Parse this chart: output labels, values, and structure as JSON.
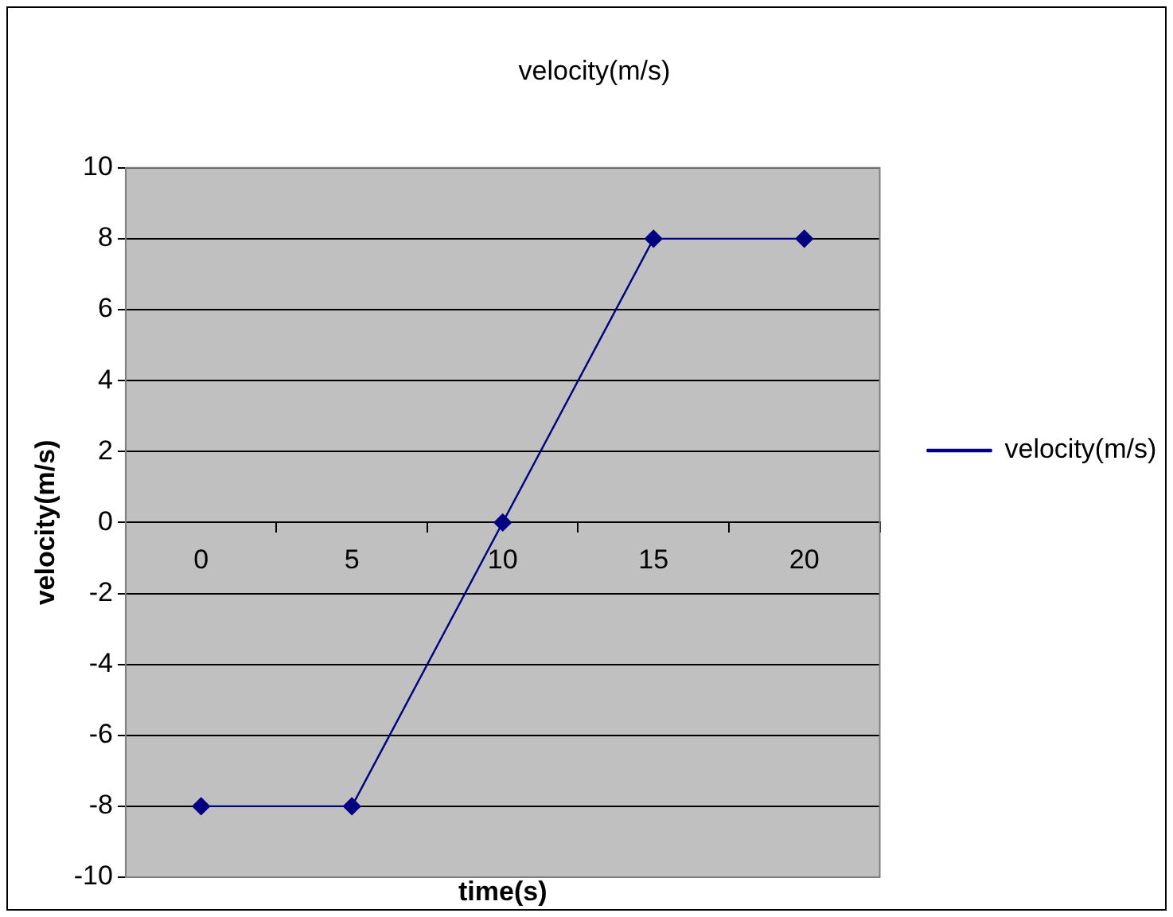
{
  "chart_data": {
    "type": "line",
    "title": "velocity(m/s)",
    "xlabel": "time(s)",
    "ylabel": "velocity(m/s)",
    "categories": [
      "0",
      "5",
      "10",
      "15",
      "20"
    ],
    "series": [
      {
        "name": "velocity(m/s)",
        "color": "#000080",
        "values": [
          -8,
          -8,
          0,
          8,
          8
        ]
      }
    ],
    "ylim": [
      -10,
      10
    ],
    "yticks": [
      -10,
      -8,
      -6,
      -4,
      -2,
      0,
      2,
      4,
      6,
      8,
      10
    ],
    "grid": "y",
    "legend": "right",
    "marker": "diamond",
    "line_style": "solid"
  }
}
